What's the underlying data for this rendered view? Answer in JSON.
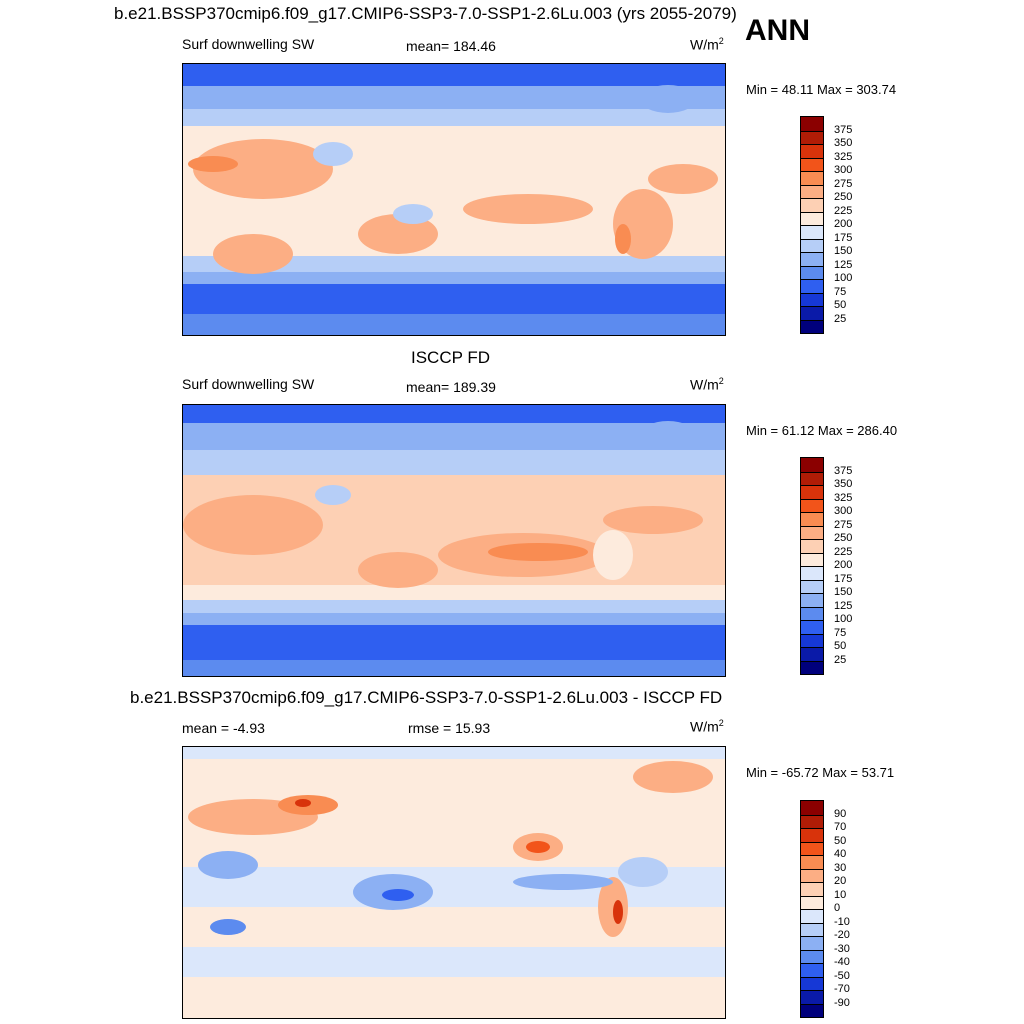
{
  "season": "ANN",
  "panels": [
    {
      "title": "b.e21.BSSP370cmip6.f09_g17.CMIP6-SSP3-7.0-SSP1-2.6Lu.003 (yrs 2055-2079)",
      "left_label": "Surf downwelling SW",
      "center_label": "mean= 184.46",
      "units_base": "W/m",
      "units_sup": "2",
      "minmax": "Min =  48.11 Max = 303.74",
      "colorbar_levels": [
        "375",
        "350",
        "325",
        "300",
        "275",
        "250",
        "225",
        "200",
        "175",
        "150",
        "125",
        "100",
        "75",
        "50",
        "25"
      ]
    },
    {
      "title": "ISCCP FD",
      "left_label": "Surf downwelling SW",
      "center_label": "mean= 189.39",
      "units_base": "W/m",
      "units_sup": "2",
      "minmax": "Min =  61.12 Max = 286.40",
      "colorbar_levels": [
        "375",
        "350",
        "325",
        "300",
        "275",
        "250",
        "225",
        "200",
        "175",
        "150",
        "125",
        "100",
        "75",
        "50",
        "25"
      ]
    },
    {
      "title": "b.e21.BSSP370cmip6.f09_g17.CMIP6-SSP3-7.0-SSP1-2.6Lu.003 - ISCCP FD",
      "left_label": "mean =  -4.93",
      "center_label": "rmse =  15.93",
      "units_base": "W/m",
      "units_sup": "2",
      "minmax": "Min = -65.72 Max =  53.71",
      "colorbar_levels": [
        "90",
        "70",
        "50",
        "40",
        "30",
        "20",
        "10",
        "0",
        "-10",
        "-20",
        "-30",
        "-40",
        "-50",
        "-70",
        "-90"
      ]
    }
  ],
  "palette": [
    "#8b0000",
    "#b01c06",
    "#d8330b",
    "#f2541a",
    "#f98c52",
    "#fcae84",
    "#fdd0b4",
    "#fdebdd",
    "#dbe7fb",
    "#b6cef7",
    "#8cb0f3",
    "#5c8bef",
    "#2f5ff0",
    "#1638d6",
    "#0a1aa8",
    "#00007c"
  ]
}
